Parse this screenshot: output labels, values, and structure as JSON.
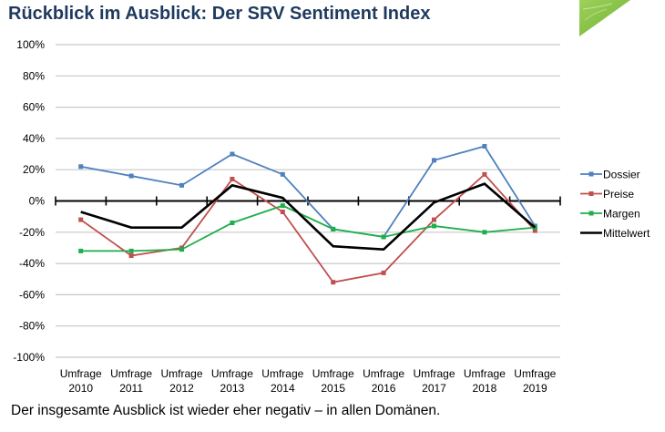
{
  "header": {
    "title": "Rückblick im Ausblick: Der SRV Sentiment Index"
  },
  "footer": {
    "text": "Der insgesamte Ausblick ist wieder eher negativ – in allen Domänen."
  },
  "decoration": {
    "leaf_color": "#8cc63f"
  },
  "chart_data": {
    "type": "line",
    "title": "",
    "xlabel": "",
    "ylabel": "",
    "categories": [
      [
        "Umfrage",
        "2010"
      ],
      [
        "Umfrage",
        "2011"
      ],
      [
        "Umfrage",
        "2012"
      ],
      [
        "Umfrage",
        "2013"
      ],
      [
        "Umfrage",
        "2014"
      ],
      [
        "Umfrage",
        "2015"
      ],
      [
        "Umfrage",
        "2016"
      ],
      [
        "Umfrage",
        "2017"
      ],
      [
        "Umfrage",
        "2018"
      ],
      [
        "Umfrage",
        "2019"
      ]
    ],
    "ylim": [
      -100,
      100
    ],
    "yticks": [
      100,
      80,
      60,
      40,
      20,
      0,
      -20,
      -40,
      -60,
      -80,
      -100
    ],
    "ytick_labels": [
      "100%",
      "80%",
      "60%",
      "40%",
      "20%",
      "0%",
      "-20%",
      "-40%",
      "-60%",
      "-80%",
      "-100%"
    ],
    "grid": true,
    "legend_position": "right",
    "series": [
      {
        "name": "Dossier",
        "color": "#4f81bd",
        "marker": "square",
        "values": [
          22,
          16,
          10,
          30,
          17,
          -18,
          -23,
          26,
          35,
          -16
        ]
      },
      {
        "name": "Preise",
        "color": "#c0504d",
        "marker": "square",
        "values": [
          -12,
          -35,
          -30,
          14,
          -7,
          -52,
          -46,
          -12,
          17,
          -19
        ]
      },
      {
        "name": "Margen",
        "color": "#1fae4c",
        "marker": "square",
        "values": [
          -32,
          -32,
          -31,
          -14,
          -3,
          -18,
          -23,
          -16,
          -20,
          -17
        ]
      },
      {
        "name": "Mittelwert",
        "color": "#000000",
        "marker": "none",
        "values": [
          -7,
          -17,
          -17,
          10,
          2,
          -29,
          -31,
          -1,
          11,
          -17
        ]
      }
    ]
  }
}
